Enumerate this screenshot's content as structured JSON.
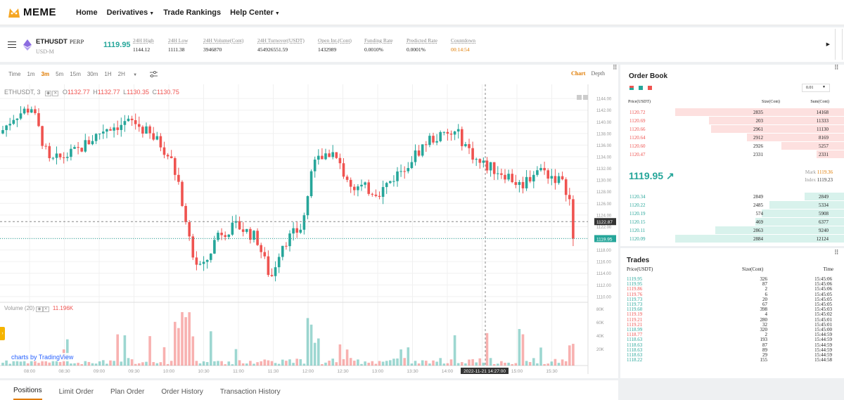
{
  "nav": {
    "brand": "MEME",
    "items": [
      "Home",
      "Derivatives",
      "Trade Rankings",
      "Help Center"
    ]
  },
  "ticker": {
    "symbol": "ETHUSDT",
    "type": "PERP",
    "settle": "USD-M",
    "last": "1119.95",
    "stats": [
      {
        "k": "24H High",
        "v": "1144.12"
      },
      {
        "k": "24H Low",
        "v": "1111.38"
      },
      {
        "k": "24H Volume(Cont)",
        "v": "3946870"
      },
      {
        "k": "24H Turnover(USDT)",
        "v": "454926551.59"
      },
      {
        "k": "Open Int.(Cont)",
        "v": "1432989"
      },
      {
        "k": "Funding Rate",
        "v": "0.0010%"
      },
      {
        "k": "Predicted Rate",
        "v": "0.0001%"
      },
      {
        "k": "Countdown",
        "v": "00:14:54"
      }
    ]
  },
  "chart": {
    "intervals": [
      "Time",
      "1m",
      "3m",
      "5m",
      "15m",
      "30m",
      "1H",
      "2H"
    ],
    "active_interval": "3m",
    "view_tabs": [
      "Chart",
      "Depth"
    ],
    "symbol_label": "ETHUSDT, 3",
    "o": "1132.77",
    "h": "1132.77",
    "l": "1130.35",
    "c": "1130.75",
    "volume_label": "Volume (20)",
    "volume_value": "11.196K",
    "tradingview": "charts by TradingView",
    "colors": {
      "up": "#26a69a",
      "down": "#ef5350"
    }
  },
  "chart_data": {
    "type": "candlestick",
    "price_ticks": [
      "1144.00",
      "1142.00",
      "1140.00",
      "1138.00",
      "1136.00",
      "1134.00",
      "1132.00",
      "1130.00",
      "1128.00",
      "1126.00",
      "1124.00",
      "1122.00",
      "1120.00",
      "1118.00",
      "1116.00",
      "1114.00",
      "1112.00",
      "1110.00"
    ],
    "volume_ticks": [
      "80K",
      "60K",
      "40K",
      "20K"
    ],
    "time_ticks": [
      "08:00",
      "08:30",
      "09:00",
      "09:30",
      "10:00",
      "10:30",
      "11:00",
      "11:30",
      "12:00",
      "12:30",
      "13:00",
      "13:30",
      "14:00",
      "14:30",
      "15:00",
      "15:30"
    ],
    "crosshair_time": "2022-11-21 14:27:00",
    "crosshair_price": "1122.87",
    "last_price": "1119.95"
  },
  "orderbook": {
    "title": "Order Book",
    "precision": "0.01",
    "headers": [
      "Price(USDT)",
      "Size(Cont)",
      "Sum(Cont)"
    ],
    "asks": [
      [
        "1120.72",
        "2835",
        "14168"
      ],
      [
        "1120.69",
        "203",
        "11333"
      ],
      [
        "1120.66",
        "2961",
        "11130"
      ],
      [
        "1120.64",
        "2912",
        "8169"
      ],
      [
        "1120.60",
        "2926",
        "5257"
      ],
      [
        "1120.47",
        "2331",
        "2331"
      ]
    ],
    "mid": "1119.95 ↗",
    "mark_label": "Mark",
    "mark": "1119.36",
    "index_label": "Index",
    "index": "1119.23",
    "bids": [
      [
        "1120.34",
        "2849",
        "2849"
      ],
      [
        "1120.22",
        "2485",
        "5334"
      ],
      [
        "1120.19",
        "574",
        "5908"
      ],
      [
        "1120.15",
        "469",
        "6377"
      ],
      [
        "1120.11",
        "2863",
        "9240"
      ],
      [
        "1120.09",
        "2884",
        "12124"
      ]
    ]
  },
  "trades": {
    "title": "Trades",
    "headers": [
      "Price(USDT)",
      "Size(Cont)",
      "Time"
    ],
    "rows": [
      [
        "1119.95",
        "326",
        "15:45:06",
        "g"
      ],
      [
        "1119.95",
        "87",
        "15:45:06",
        "g"
      ],
      [
        "1119.86",
        "2",
        "15:45:06",
        "r"
      ],
      [
        "1119.76",
        "6",
        "15:45:05",
        "r"
      ],
      [
        "1119.73",
        "20",
        "15:45:05",
        "g"
      ],
      [
        "1119.73",
        "67",
        "15:45:05",
        "g"
      ],
      [
        "1119.60",
        "398",
        "15:45:03",
        "g"
      ],
      [
        "1119.19",
        "4",
        "15:45:02",
        "r"
      ],
      [
        "1119.21",
        "280",
        "15:45:01",
        "r"
      ],
      [
        "1119.21",
        "32",
        "15:45:01",
        "r"
      ],
      [
        "1118.99",
        "320",
        "15:45:00",
        "g"
      ],
      [
        "1118.77",
        "2",
        "15:44:59",
        "r"
      ],
      [
        "1118.63",
        "193",
        "15:44:59",
        "g"
      ],
      [
        "1118.63",
        "87",
        "15:44:59",
        "g"
      ],
      [
        "1118.63",
        "89",
        "15:44:59",
        "g"
      ],
      [
        "1118.63",
        "29",
        "15:44:59",
        "g"
      ],
      [
        "1118.22",
        "155",
        "15:44:58",
        "g"
      ]
    ]
  },
  "bottom_tabs": [
    "Positions",
    "Limit Order",
    "Plan Order",
    "Order History",
    "Transaction History"
  ]
}
